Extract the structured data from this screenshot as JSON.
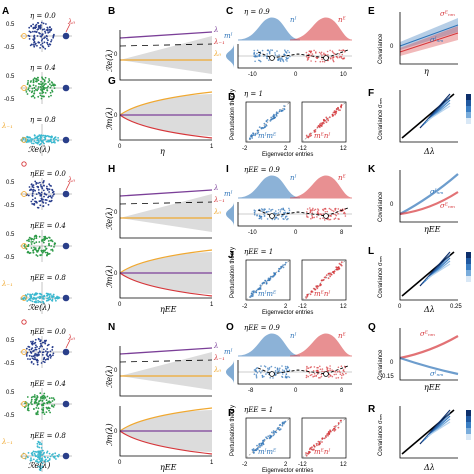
{
  "rows": [
    {
      "col1": {
        "label": "A",
        "param_sym": "η",
        "etas": [
          "η = 0.0",
          "η = 0.4",
          "η = 0.8"
        ],
        "ticks_left": [
          "0.5",
          "-0.5",
          "0.5",
          "-0.5"
        ],
        "tag_top": "λ₀",
        "tag_mid": "λ₋₁",
        "xlabel": "ℛe(λ)"
      },
      "col2": {
        "label_top": "B",
        "label_bot": "G",
        "ylabel_top": "ℛe(λ)",
        "ylabel_bot": "ℐm(λ)",
        "legend": [
          "λ",
          "λ₋₁",
          "λ₀"
        ],
        "xlabel": "η",
        "xticks": [
          "0",
          "1"
        ],
        "ytick": "0"
      },
      "col3": {
        "label_top": "C",
        "label_bot": "D",
        "title": "η = 0.9",
        "ptitle": "η = 1",
        "ylabel": "Perturbation theory",
        "xlabel": "Eigenvector entries",
        "xticks": [
          "-10",
          "0",
          "10"
        ],
        "sub_ticks": [
          "-2",
          "2",
          "-12",
          "12"
        ]
      },
      "col4": {
        "label_top": "E",
        "label_bot": "F",
        "ylabel_top": "Covariance",
        "ylabel_bot": "Covariance σₙₘ",
        "xlabel_top": "η",
        "xlabel_bot": "Δλ",
        "zero": "0"
      }
    },
    {
      "col1": {
        "label": "",
        "etas": [
          "ηEE = 0.0",
          "ηEE = 0.4",
          "ηEE = 0.8"
        ],
        "ticks_left": [
          "0.5",
          "-0.5",
          "0.5",
          "-0.5"
        ],
        "tag_top": "λ₀",
        "tag_mid": "λ₋₁",
        "xlabel": "ℛe(λ)"
      },
      "col2": {
        "label_top": "H",
        "label_bot": "",
        "ylabel_top": "ℛe(λ)",
        "ylabel_bot": "ℐm(λ)",
        "legend": [
          "λ",
          "λ₋₁",
          "λ₀"
        ],
        "xlabel": "ηEE",
        "xticks": [
          "0",
          "1"
        ],
        "ytick": "0"
      },
      "col3": {
        "label_top": "I",
        "label_bot": "J",
        "title": "ηEE = 0.9",
        "ptitle": "ηEE = 1",
        "ylabel": "Perturbation theory",
        "xlabel": "Eigenvector entries",
        "xticks": [
          "-10",
          "0",
          "8"
        ],
        "sub_ticks": [
          "-2",
          "2",
          "-12",
          "12"
        ]
      },
      "col4": {
        "label_top": "K",
        "label_bot": "L",
        "ylabel_top": "Covariance",
        "ylabel_bot": "Covariance σₙₘ",
        "xlabel_top": "ηEE",
        "xlabel_bot": "Δλ",
        "zero": "0",
        "xtick_end": "0.25"
      }
    },
    {
      "col1": {
        "label": "",
        "etas": [
          "ηEE = 0.0",
          "ηEE = 0.4",
          "ηEE = 0.8"
        ],
        "ticks_left": [
          "0.5",
          "-0.5",
          "0.5",
          "-0.5"
        ],
        "tag_top": "λ₀",
        "tag_mid": "λ₋₁",
        "xlabel": "ℛe(λ)"
      },
      "col2": {
        "label_top": "N",
        "label_bot": "",
        "ylabel_top": "ℛe(λ)",
        "ylabel_bot": "ℐm(λ)",
        "legend": [
          "λ",
          "λ₋₁",
          "λ₀"
        ],
        "xlabel": "ηEE",
        "xticks": [
          "0",
          "1"
        ],
        "ytick": "0"
      },
      "col3": {
        "label_top": "O",
        "label_bot": "P",
        "title": "ηEE = 0.9",
        "ptitle": "ηEE = 1",
        "ylabel": "Perturbation theory",
        "xlabel": "Eigenvector entries",
        "xticks": [
          "-8",
          "0",
          "8"
        ],
        "sub_ticks": [
          "-2",
          "2",
          "-12",
          "12"
        ]
      },
      "col4": {
        "label_top": "Q",
        "label_bot": "R",
        "ylabel_top": "Covariance",
        "ylabel_bot": "Covariance σₙₘ",
        "xlabel_top": "ηEE",
        "xlabel_bot": "Δλ",
        "zero": "0",
        "neg": "-0.15"
      }
    }
  ],
  "symbols": {
    "mE": "mᴱ",
    "mI": "mᴵ",
    "nE": "nᴱ",
    "nI": "nᴵ",
    "sigI": "σᴵₙₘ",
    "sigE": "σᴱₙₘ"
  },
  "colors": {
    "blue": "#2f74b8",
    "red": "#d6363a",
    "purple": "#7b3f98",
    "orange": "#f0a830",
    "green": "#2d9a47",
    "navy": "#283d8c",
    "cyan": "#3ab8cf"
  }
}
